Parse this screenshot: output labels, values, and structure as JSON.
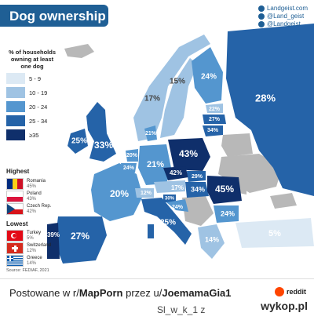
{
  "title": "Dog ownership",
  "attribution": {
    "site": "Landgeist.com",
    "instagram": "@Land_geist",
    "twitter": "@Landgeist"
  },
  "legend": {
    "title": "% of households owning at least one dog",
    "items": [
      {
        "label": "5 - 9",
        "color": "#dce9f4"
      },
      {
        "label": "10 - 19",
        "color": "#9fc3e3"
      },
      {
        "label": "20 - 24",
        "color": "#5496cf"
      },
      {
        "label": "25 - 34",
        "color": "#2563a8"
      },
      {
        "label": "≥35",
        "color": "#0f2f6b"
      }
    ]
  },
  "highest": {
    "title": "Highest",
    "items": [
      {
        "country": "Romania",
        "value": "45%"
      },
      {
        "country": "Poland",
        "value": "43%"
      },
      {
        "country": "Czech Rep.",
        "value": "42%"
      }
    ]
  },
  "lowest": {
    "title": "Lowest",
    "items": [
      {
        "country": "Turkey",
        "value": "5%"
      },
      {
        "country": "Switzerland",
        "value": "12%"
      },
      {
        "country": "Greece",
        "value": "14%"
      }
    ]
  },
  "source": "Source: FEDIAF, 2021",
  "map_labels": {
    "ireland": "25%",
    "uk": "33%",
    "norway": "17%",
    "sweden": "15%",
    "finland": "24%",
    "russia": "28%",
    "estonia": "22%",
    "latvia": "27%",
    "lithuania": "34%",
    "denmark": "21%",
    "netherlands": "20%",
    "belgium": "24%",
    "france": "20%",
    "germany": "21%",
    "poland": "43%",
    "czech": "42%",
    "slovakia": "29%",
    "austria": "17%",
    "hungary": "34%",
    "romania": "45%",
    "switzerland": "12%",
    "slovenia": "30%",
    "croatia": "24%",
    "italy": "25%",
    "bulgaria": "24%",
    "spain": "27%",
    "portugal": "39%",
    "greece": "14%",
    "turkey": "5%"
  },
  "footer": {
    "prefix": "Postowane w r/",
    "subreddit": "MapPorn",
    "middle": " przez u/",
    "user": "JoemamaGia1",
    "reddit": "reddit"
  },
  "watermark": "Sl_w_k_1 z",
  "wykop": "wykop.pl",
  "colors": {
    "banner": "#1f5f95",
    "sea": "#ffffff",
    "no_data": "#b8b8b8"
  }
}
